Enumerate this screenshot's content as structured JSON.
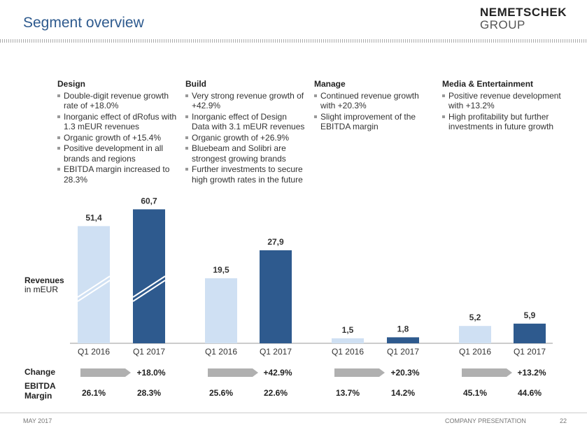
{
  "header": {
    "title": "Segment overview",
    "logo_line1": "NEMETSCHEK",
    "logo_line2": "GROUP"
  },
  "segments": [
    {
      "name": "Design",
      "bullets": [
        "Double-digit revenue growth rate of +18.0%",
        "Inorganic effect of dRofus with 1.3 mEUR revenues",
        "Organic growth of +15.4%",
        "Positive development in all brands and regions",
        "EBITDA margin increased to 28.3%"
      ]
    },
    {
      "name": "Build",
      "bullets": [
        "Very strong revenue growth of +42.9%",
        "Inorganic effect of Design Data with 3.1 mEUR revenues",
        "Organic growth of +26.9%",
        "Bluebeam and Solibri are strongest growing brands",
        "Further investments to secure high growth rates in the future"
      ]
    },
    {
      "name": "Manage",
      "bullets": [
        "Continued revenue growth with +20.3%",
        "Slight improvement of the EBITDA margin"
      ]
    },
    {
      "name": "Media & Entertainment",
      "bullets": [
        "Positive revenue development with +13.2%",
        "High profitability but further investments in future growth"
      ]
    }
  ],
  "chart_data": {
    "type": "bar",
    "y_label": [
      "Revenues",
      "in mEUR"
    ],
    "categories": [
      "Q1 2016",
      "Q1 2017",
      "Q1 2016",
      "Q1 2017",
      "Q1 2016",
      "Q1 2017",
      "Q1 2016",
      "Q1 2017"
    ],
    "values": [
      51.4,
      60.7,
      19.5,
      27.9,
      1.5,
      1.8,
      5.2,
      5.9
    ],
    "value_labels": [
      "51,4",
      "60,7",
      "19,5",
      "27,9",
      "1,5",
      "1,8",
      "5,2",
      "5,9"
    ],
    "colors": [
      "#cfe0f3",
      "#2e5a8e"
    ]
  },
  "change_label": "Change",
  "changes": [
    "+18.0%",
    "+42.9%",
    "+20.3%",
    "+13.2%"
  ],
  "ebitda_label": [
    "EBITDA",
    "Margin"
  ],
  "ebitda": [
    "26.1%",
    "28.3%",
    "25.6%",
    "22.6%",
    "13.7%",
    "14.2%",
    "45.1%",
    "44.6%"
  ],
  "footer": {
    "left": "MAY 2017",
    "right": "COMPANY PRESENTATION",
    "page": "22"
  }
}
